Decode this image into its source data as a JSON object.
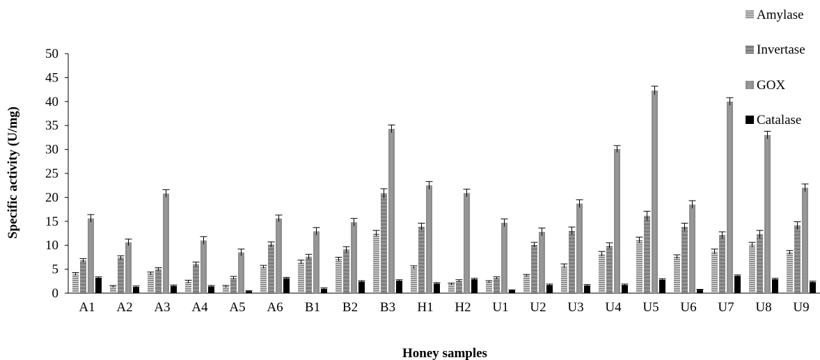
{
  "chart_data": {
    "type": "bar",
    "title": "",
    "xlabel": "Honey samples",
    "ylabel": "Specific activity (U/mg)",
    "ylim": [
      0,
      50
    ],
    "yticks": [
      0,
      5,
      10,
      15,
      20,
      25,
      30,
      35,
      40,
      45,
      50
    ],
    "grid": false,
    "legend_position": "top-right",
    "categories": [
      "A1",
      "A2",
      "A3",
      "A4",
      "A5",
      "A6",
      "B1",
      "B2",
      "B3",
      "H1",
      "H2",
      "U1",
      "U2",
      "U3",
      "U4",
      "U5",
      "U6",
      "U7",
      "U8",
      "U9"
    ],
    "series": [
      {
        "name": "Amylase",
        "pattern": "horizontal-lines-light",
        "values": [
          4.0,
          1.4,
          4.1,
          2.4,
          1.4,
          5.5,
          6.5,
          7.1,
          12.5,
          5.4,
          1.9,
          2.4,
          3.7,
          5.7,
          8.2,
          11.1,
          7.6,
          8.7,
          10.1,
          8.5
        ],
        "errors": [
          0.3,
          0.2,
          0.3,
          0.3,
          0.2,
          0.3,
          0.4,
          0.4,
          0.6,
          0.3,
          0.2,
          0.2,
          0.2,
          0.4,
          0.5,
          0.6,
          0.4,
          0.5,
          0.5,
          0.4
        ]
      },
      {
        "name": "Invertase",
        "pattern": "horizontal-lines-dense",
        "values": [
          6.8,
          7.4,
          5.0,
          6.0,
          3.2,
          10.2,
          7.6,
          9.1,
          20.8,
          13.9,
          2.6,
          3.2,
          10.1,
          13.0,
          9.9,
          16.1,
          13.8,
          12.1,
          12.3,
          14.1
        ],
        "errors": [
          0.4,
          0.4,
          0.3,
          0.5,
          0.3,
          0.5,
          0.5,
          0.6,
          1.0,
          0.7,
          0.2,
          0.2,
          0.5,
          0.8,
          0.6,
          1.0,
          0.8,
          0.7,
          0.8,
          0.8
        ]
      },
      {
        "name": "GOX",
        "pattern": "solid-gray",
        "values": [
          15.6,
          10.6,
          20.8,
          11.0,
          8.5,
          15.6,
          12.9,
          14.8,
          34.3,
          22.5,
          20.9,
          14.7,
          12.8,
          18.7,
          30.1,
          42.3,
          18.5,
          40.0,
          33.0,
          22.0
        ],
        "errors": [
          0.8,
          0.7,
          0.8,
          0.8,
          0.7,
          0.7,
          0.8,
          0.8,
          0.8,
          0.8,
          0.8,
          0.8,
          0.8,
          0.8,
          0.7,
          0.9,
          0.8,
          0.8,
          0.8,
          0.8
        ]
      },
      {
        "name": "Catalase",
        "pattern": "solid-black",
        "values": [
          3.2,
          1.3,
          1.5,
          1.4,
          0.4,
          3.1,
          0.9,
          2.4,
          2.6,
          2.0,
          2.9,
          0.6,
          1.7,
          1.6,
          1.7,
          2.8,
          0.7,
          3.6,
          2.9,
          2.3
        ],
        "errors": [
          0.2,
          0.2,
          0.2,
          0.2,
          0.1,
          0.2,
          0.2,
          0.2,
          0.2,
          0.2,
          0.2,
          0.1,
          0.2,
          0.2,
          0.2,
          0.2,
          0.1,
          0.2,
          0.2,
          0.2
        ]
      }
    ],
    "colors": {
      "amylase_fill": "#9a9a9a",
      "invertase_fill": "#6e6e6e",
      "gox_fill": "#8f8f8f",
      "catalase_fill": "#000000",
      "axis": "#000000"
    }
  }
}
